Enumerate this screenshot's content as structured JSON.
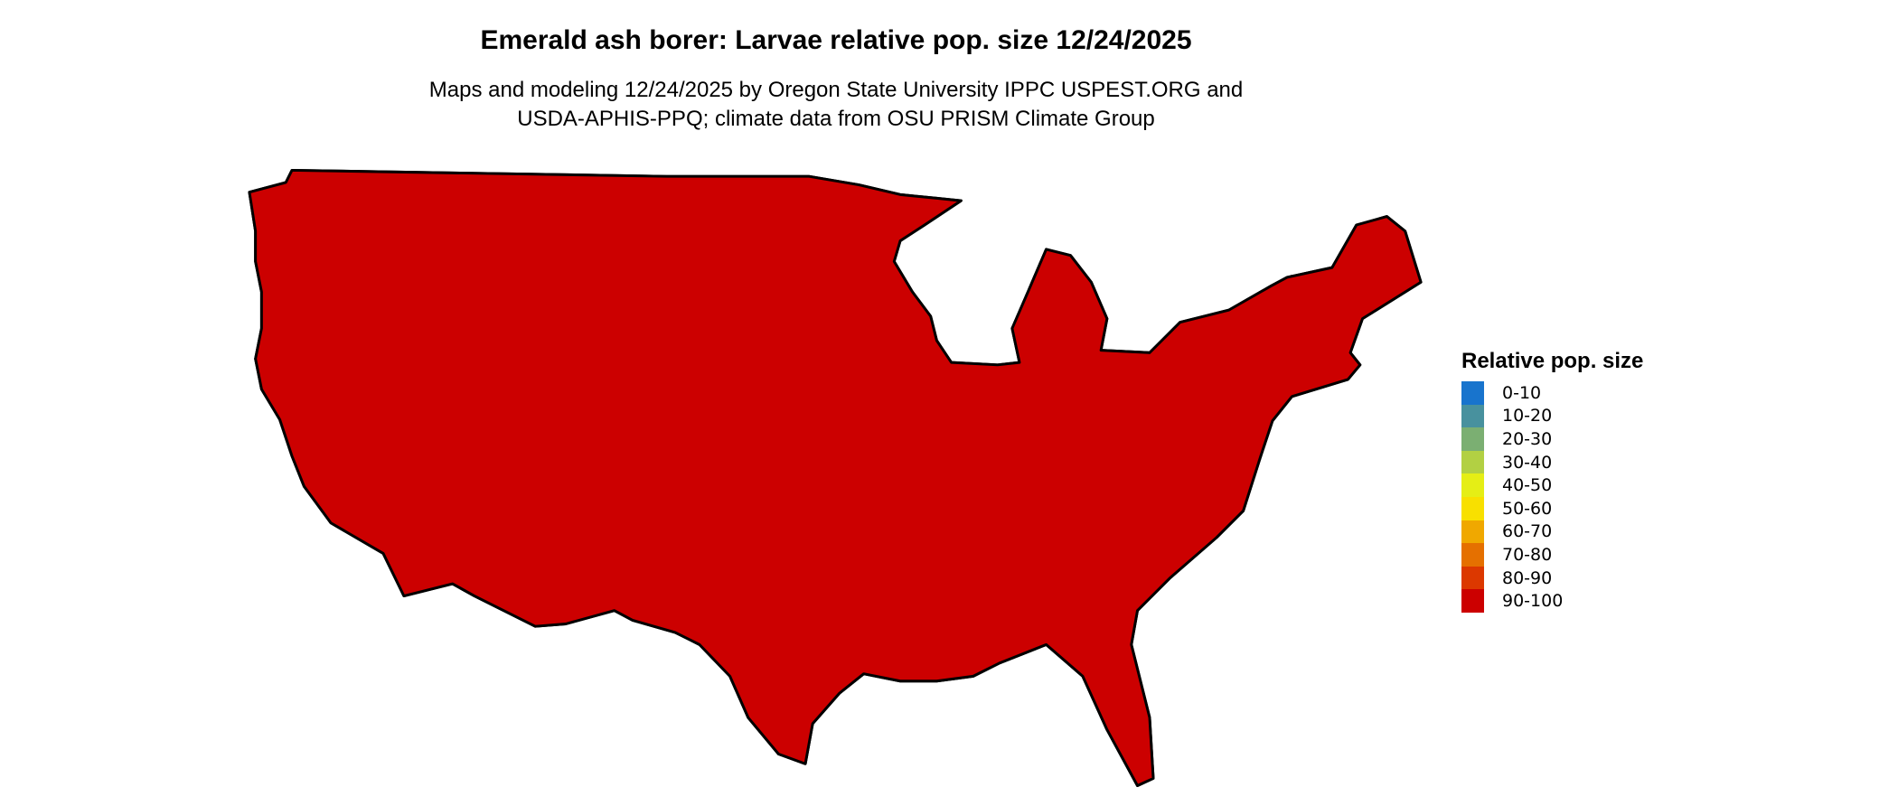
{
  "title": "Emerald ash borer: Larvae relative pop. size 12/24/2025",
  "subtitle_line1": "Maps and modeling 12/24/2025 by Oregon State University IPPC USPEST.ORG and",
  "subtitle_line2": "USDA-APHIS-PPQ; climate data from OSU PRISM Climate Group",
  "legend": {
    "title": "Relative pop. size",
    "items": [
      {
        "label": "0-10",
        "color": "#1874CD"
      },
      {
        "label": "10-20",
        "color": "#48919E"
      },
      {
        "label": "20-30",
        "color": "#7BAF72"
      },
      {
        "label": "30-40",
        "color": "#B2D043"
      },
      {
        "label": "40-50",
        "color": "#E5EE15"
      },
      {
        "label": "50-60",
        "color": "#F8E000"
      },
      {
        "label": "60-70",
        "color": "#F0A800"
      },
      {
        "label": "70-80",
        "color": "#E57000"
      },
      {
        "label": "80-90",
        "color": "#DC3800"
      },
      {
        "label": "90-100",
        "color": "#CC0000"
      }
    ]
  },
  "map": {
    "dominant_class": "90-100",
    "region": "Contiguous United States"
  }
}
